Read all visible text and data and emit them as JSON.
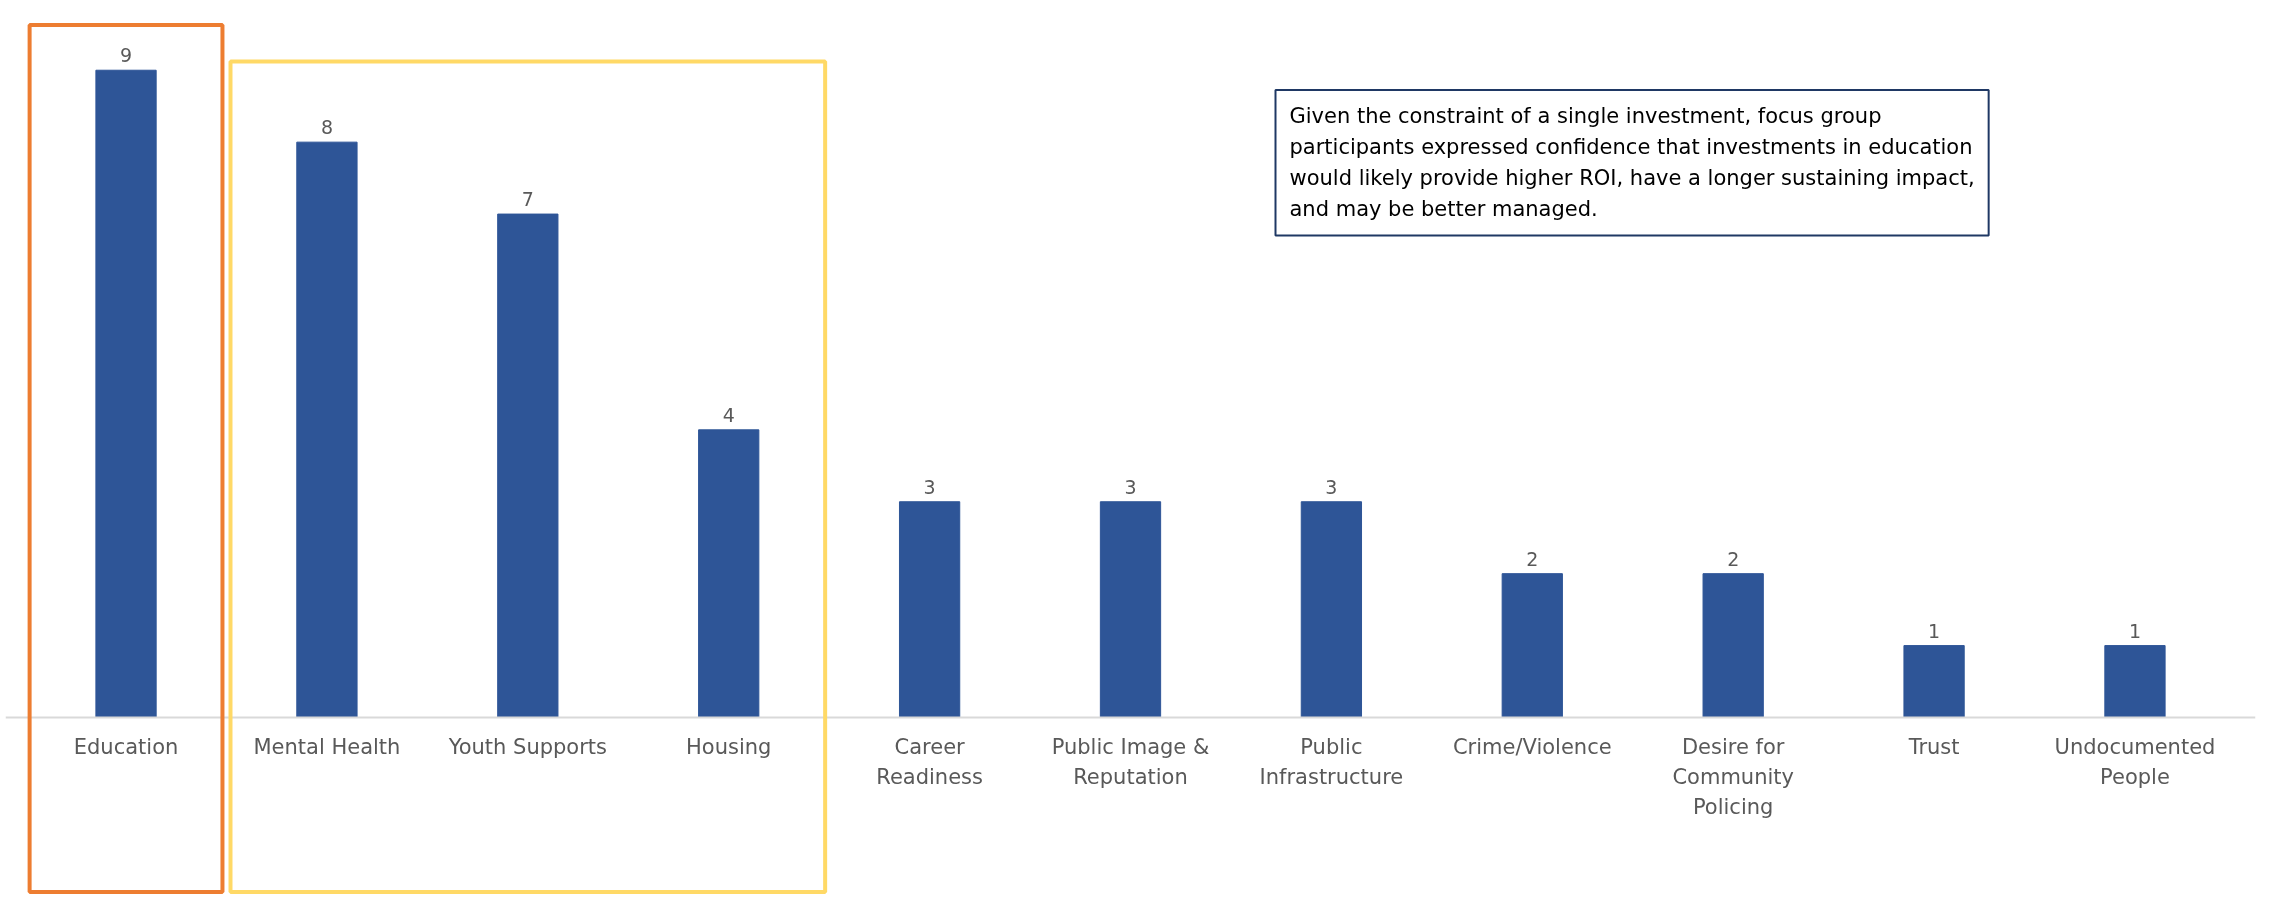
{
  "chart_data": {
    "type": "bar",
    "categories": [
      "Education",
      "Mental Health",
      "Youth Supports",
      "Housing",
      "Career Readiness",
      "Public Image & Reputation",
      "Public Infrastructure",
      "Crime/Violence",
      "Desire for Community Policing",
      "Trust",
      "Undocumented People"
    ],
    "values": [
      9,
      8,
      7,
      4,
      3,
      3,
      3,
      2,
      2,
      1,
      1
    ],
    "color": "#2e5597",
    "data_labels": true,
    "annotations": [
      "Given the constraint of a single investment, focus group participants expressed confidence that investments in education would likely provide higher ROI, have a longer sustaining impact, and may be better managed."
    ]
  }
}
